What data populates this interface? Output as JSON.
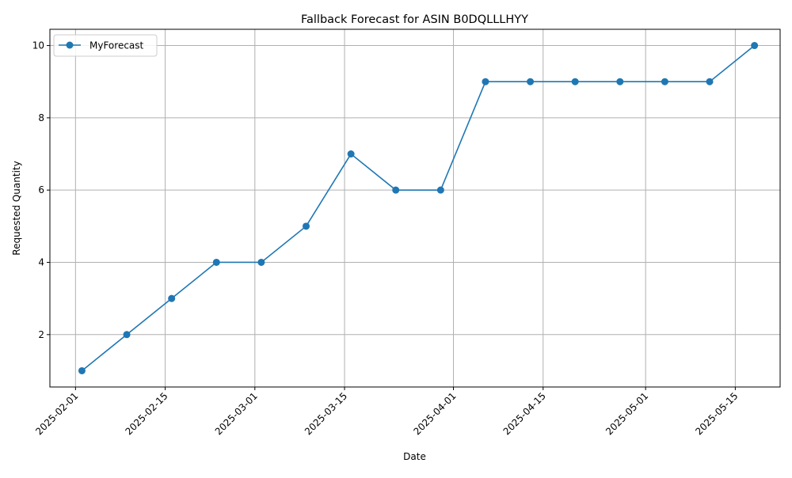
{
  "chart_data": {
    "type": "line",
    "title": "Fallback Forecast for ASIN B0DQLLLHYY",
    "xlabel": "Date",
    "ylabel": "Requested Quantity",
    "x_ticks": [
      "2025-02-01",
      "2025-02-15",
      "2025-03-01",
      "2025-03-15",
      "2025-04-01",
      "2025-04-15",
      "2025-05-01",
      "2025-05-15"
    ],
    "y_ticks": [
      2,
      4,
      6,
      8,
      10
    ],
    "xlim": [
      "2025-01-28",
      "2025-05-22"
    ],
    "ylim": [
      0.55,
      10.45
    ],
    "grid": true,
    "legend_position": "top-left",
    "series": [
      {
        "name": "MyForecast",
        "color": "#1f77b4",
        "marker": "circle",
        "x": [
          "2025-02-02",
          "2025-02-09",
          "2025-02-16",
          "2025-02-23",
          "2025-03-02",
          "2025-03-09",
          "2025-03-16",
          "2025-03-23",
          "2025-03-30",
          "2025-04-06",
          "2025-04-13",
          "2025-04-20",
          "2025-04-27",
          "2025-05-04",
          "2025-05-11",
          "2025-05-18"
        ],
        "values": [
          1,
          2,
          3,
          4,
          4,
          5,
          7,
          6,
          6,
          9,
          9,
          9,
          9,
          9,
          9,
          10
        ]
      }
    ]
  }
}
